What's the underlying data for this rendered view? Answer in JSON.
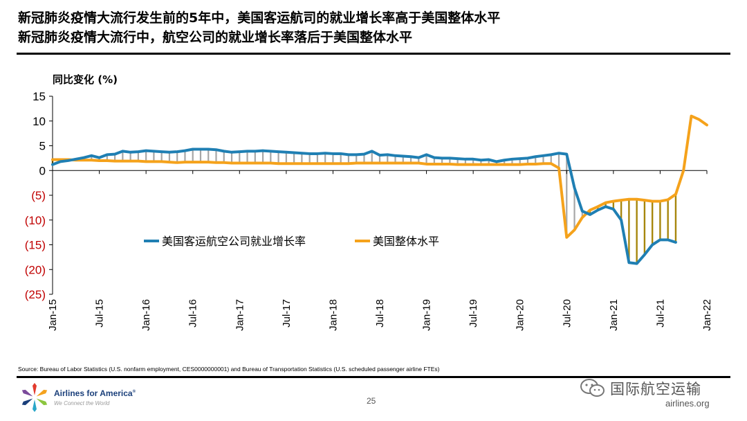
{
  "title": {
    "line1": "新冠肺炎疫情大流行发生前的5年中，美国客运航司的就业增长率高于美国整体水平",
    "line2": "新冠肺炎疫情大流行中，航空公司的就业增长率落后于美国整体水平"
  },
  "footer": {
    "source": "Source: Bureau of Labor Statistics (U.S. nonfarm employment, CES0000000001) and Bureau of Transportation Statistics (U.S. scheduled passenger airline FTEs)",
    "brand": "Airlines for America",
    "brand_mark": "®",
    "tagline": "We Connect the World",
    "page_number": "25",
    "watermark": "国际航空运输",
    "url": "airlines.org"
  },
  "chart_data": {
    "type": "line",
    "ylabel": "同比变化 (%)",
    "ylim": [
      -25,
      15
    ],
    "yticks": [
      {
        "value": 15,
        "label": "15",
        "negative": false
      },
      {
        "value": 10,
        "label": "10",
        "negative": false
      },
      {
        "value": 5,
        "label": "5",
        "negative": false
      },
      {
        "value": 0,
        "label": "0",
        "negative": false
      },
      {
        "value": -5,
        "label": "(5)",
        "negative": true
      },
      {
        "value": -10,
        "label": "(10)",
        "negative": true
      },
      {
        "value": -15,
        "label": "(15)",
        "negative": true
      },
      {
        "value": -20,
        "label": "(20)",
        "negative": true
      },
      {
        "value": -25,
        "label": "(25)",
        "negative": true
      }
    ],
    "xlim": [
      "2015-01",
      "2022-01"
    ],
    "xticks": [
      "Jan-15",
      "Jul-15",
      "Jan-16",
      "Jul-16",
      "Jan-17",
      "Jul-17",
      "Jan-18",
      "Jul-18",
      "Jan-19",
      "Jul-19",
      "Jan-20",
      "Jul-20",
      "Jan-21",
      "Jul-21",
      "Jan-22"
    ],
    "grid": false,
    "legend_position": "center-left",
    "colors": {
      "airline": "#1f7fb3",
      "us": "#f5a21b",
      "fill_above": "#a6a6a6",
      "fill_below": "#a6860c",
      "negative_tick": "#c00000"
    },
    "series": [
      {
        "name": "美国客运航空公司就业增长率",
        "key": "airline",
        "start": "2015-01",
        "values": [
          1.2,
          1.8,
          2.0,
          2.3,
          2.6,
          3.0,
          2.6,
          3.2,
          3.3,
          3.9,
          3.7,
          3.8,
          4.0,
          3.9,
          3.8,
          3.7,
          3.8,
          4.0,
          4.3,
          4.3,
          4.3,
          4.2,
          3.9,
          3.7,
          3.8,
          3.9,
          3.9,
          4.0,
          3.9,
          3.8,
          3.7,
          3.6,
          3.5,
          3.4,
          3.4,
          3.5,
          3.4,
          3.4,
          3.2,
          3.2,
          3.3,
          3.9,
          3.1,
          3.2,
          3.0,
          2.9,
          2.8,
          2.6,
          3.2,
          2.6,
          2.5,
          2.5,
          2.4,
          2.3,
          2.3,
          2.1,
          2.2,
          1.8,
          2.1,
          2.3,
          2.4,
          2.5,
          2.8,
          3.0,
          3.2,
          3.5,
          3.3,
          -3.5,
          -8.2,
          -8.9,
          -8.0,
          -7.3,
          -7.8,
          -10.0,
          -18.6,
          -18.8,
          -17.0,
          -15.0,
          -14.0,
          -14.0,
          -14.5
        ]
      },
      {
        "name": "美国整体水平",
        "key": "us",
        "start": "2015-01",
        "values": [
          2.2,
          2.2,
          2.2,
          2.1,
          2.1,
          2.1,
          2.0,
          2.0,
          1.9,
          1.9,
          1.9,
          1.9,
          1.8,
          1.8,
          1.8,
          1.7,
          1.6,
          1.7,
          1.7,
          1.7,
          1.7,
          1.6,
          1.6,
          1.5,
          1.5,
          1.5,
          1.5,
          1.5,
          1.5,
          1.4,
          1.4,
          1.4,
          1.4,
          1.4,
          1.4,
          1.4,
          1.4,
          1.4,
          1.4,
          1.5,
          1.5,
          1.5,
          1.5,
          1.5,
          1.5,
          1.5,
          1.5,
          1.5,
          1.3,
          1.3,
          1.3,
          1.3,
          1.2,
          1.2,
          1.2,
          1.2,
          1.2,
          1.2,
          1.2,
          1.2,
          1.2,
          1.3,
          1.3,
          1.4,
          1.4,
          0.5,
          -13.5,
          -12.0,
          -9.5,
          -8.0,
          -7.3,
          -6.5,
          -6.2,
          -6.0,
          -5.8,
          -5.8,
          -6.0,
          -6.2,
          -6.2,
          -5.9,
          -4.8,
          0.0,
          11.0,
          10.3,
          9.2
        ]
      }
    ]
  }
}
